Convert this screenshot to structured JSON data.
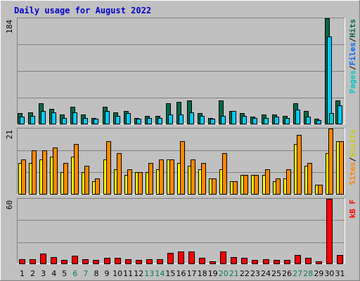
{
  "title": "Daily usage for August 2022",
  "colors": {
    "background": "#c0c0c0",
    "plot_background": "#c0c0c0",
    "title": "#0000cc",
    "hits": "#006a4a",
    "files": "#00ccff",
    "pages": "#00c8c8",
    "visits": "#ffff00",
    "sites": "#ff8800",
    "kbf": "#ff0000",
    "weekday_label": "#000000",
    "weekend_label": "#00804b"
  },
  "chart_data": [
    {
      "type": "bar",
      "panel": "hits-files-pages",
      "ymax_label": "184",
      "ylim": [
        0,
        184
      ],
      "legend": [
        {
          "text": "Pages",
          "color": "#00c8c8"
        },
        {
          "text": "/",
          "color": "#000000"
        },
        {
          "text": "Files",
          "color": "#0066ff"
        },
        {
          "text": "/",
          "color": "#000000"
        },
        {
          "text": "Hits",
          "color": "#006a4a"
        }
      ],
      "categories": [
        "1",
        "2",
        "3",
        "4",
        "5",
        "6",
        "7",
        "8",
        "9",
        "10",
        "11",
        "12",
        "13",
        "14",
        "15",
        "16",
        "17",
        "18",
        "19",
        "20",
        "21",
        "22",
        "23",
        "24",
        "25",
        "26",
        "27",
        "28",
        "29",
        "30",
        "31"
      ],
      "series": [
        {
          "name": "Hits",
          "values": [
            18,
            20,
            36,
            26,
            16,
            30,
            16,
            10,
            30,
            20,
            22,
            10,
            14,
            14,
            36,
            38,
            40,
            18,
            10,
            40,
            22,
            18,
            12,
            16,
            16,
            14,
            36,
            22,
            8,
            184,
            40
          ]
        },
        {
          "name": "Files",
          "values": [
            12,
            14,
            22,
            20,
            10,
            20,
            10,
            8,
            22,
            14,
            18,
            8,
            10,
            10,
            16,
            16,
            20,
            14,
            8,
            14,
            22,
            14,
            10,
            10,
            12,
            10,
            24,
            12,
            6,
            152,
            32
          ]
        },
        {
          "name": "Pages",
          "values": [
            0,
            0,
            0,
            0,
            0,
            0,
            0,
            0,
            0,
            0,
            0,
            0,
            0,
            0,
            0,
            0,
            0,
            0,
            0,
            0,
            0,
            0,
            0,
            0,
            0,
            0,
            0,
            0,
            0,
            18,
            0
          ]
        }
      ]
    },
    {
      "type": "bar",
      "panel": "visits-sites",
      "ymax_label": "21",
      "ylim": [
        0,
        21
      ],
      "legend": [
        {
          "text": "Sites",
          "color": "#ff8800"
        },
        {
          "text": "/",
          "color": "#000000"
        },
        {
          "text": "Visits",
          "color": "#cccc00"
        }
      ],
      "categories": [
        "1",
        "2",
        "3",
        "4",
        "5",
        "6",
        "7",
        "8",
        "9",
        "10",
        "11",
        "12",
        "13",
        "14",
        "15",
        "16",
        "17",
        "18",
        "19",
        "20",
        "21",
        "22",
        "23",
        "24",
        "25",
        "26",
        "27",
        "28",
        "29",
        "30",
        "31"
      ],
      "series": [
        {
          "name": "Visits",
          "values": [
            10,
            10,
            11,
            12,
            7,
            12,
            7,
            4,
            11,
            8,
            6,
            7,
            7,
            8,
            11,
            10,
            9,
            8,
            5,
            8,
            4,
            6,
            6,
            6,
            4,
            5,
            16,
            9,
            3,
            13,
            17
          ]
        },
        {
          "name": "Sites",
          "values": [
            11,
            14,
            14,
            15,
            10,
            16,
            9,
            5,
            17,
            13,
            8,
            7,
            10,
            11,
            11,
            17,
            11,
            10,
            5,
            13,
            4,
            6,
            6,
            8,
            5,
            8,
            19,
            10,
            3,
            21,
            17
          ]
        }
      ]
    },
    {
      "type": "bar",
      "panel": "kbf",
      "ymax_label": "60",
      "ylim": [
        0,
        60
      ],
      "legend": [
        {
          "text": "kB F",
          "color": "#ff0000"
        }
      ],
      "categories": [
        "1",
        "2",
        "3",
        "4",
        "5",
        "6",
        "7",
        "8",
        "9",
        "10",
        "11",
        "12",
        "13",
        "14",
        "15",
        "16",
        "17",
        "18",
        "19",
        "20",
        "21",
        "22",
        "23",
        "24",
        "25",
        "26",
        "27",
        "28",
        "29",
        "30",
        "31"
      ],
      "series": [
        {
          "name": "kB F",
          "values": [
            4,
            4,
            9,
            6,
            3,
            7,
            4,
            3,
            5,
            5,
            4,
            3,
            4,
            4,
            10,
            11,
            11,
            5,
            2,
            11,
            6,
            5,
            3,
            4,
            3,
            3,
            8,
            5,
            2,
            60,
            8
          ]
        }
      ]
    }
  ],
  "x_labels": [
    {
      "text": "1",
      "weekend": false
    },
    {
      "text": "2",
      "weekend": false
    },
    {
      "text": "3",
      "weekend": false
    },
    {
      "text": "4",
      "weekend": false
    },
    {
      "text": "5",
      "weekend": false
    },
    {
      "text": "6",
      "weekend": true
    },
    {
      "text": "7",
      "weekend": true
    },
    {
      "text": "8",
      "weekend": false
    },
    {
      "text": "9",
      "weekend": false
    },
    {
      "text": "10",
      "weekend": false
    },
    {
      "text": "11",
      "weekend": false
    },
    {
      "text": "12",
      "weekend": false
    },
    {
      "text": "13",
      "weekend": true
    },
    {
      "text": "14",
      "weekend": true
    },
    {
      "text": "15",
      "weekend": false
    },
    {
      "text": "16",
      "weekend": false
    },
    {
      "text": "17",
      "weekend": false
    },
    {
      "text": "18",
      "weekend": false
    },
    {
      "text": "19",
      "weekend": false
    },
    {
      "text": "20",
      "weekend": true
    },
    {
      "text": "21",
      "weekend": true
    },
    {
      "text": "22",
      "weekend": false
    },
    {
      "text": "23",
      "weekend": false
    },
    {
      "text": "24",
      "weekend": false
    },
    {
      "text": "25",
      "weekend": false
    },
    {
      "text": "26",
      "weekend": false
    },
    {
      "text": "27",
      "weekend": true
    },
    {
      "text": "28",
      "weekend": true
    },
    {
      "text": "29",
      "weekend": false
    },
    {
      "text": "30",
      "weekend": false
    },
    {
      "text": "31",
      "weekend": false
    }
  ]
}
